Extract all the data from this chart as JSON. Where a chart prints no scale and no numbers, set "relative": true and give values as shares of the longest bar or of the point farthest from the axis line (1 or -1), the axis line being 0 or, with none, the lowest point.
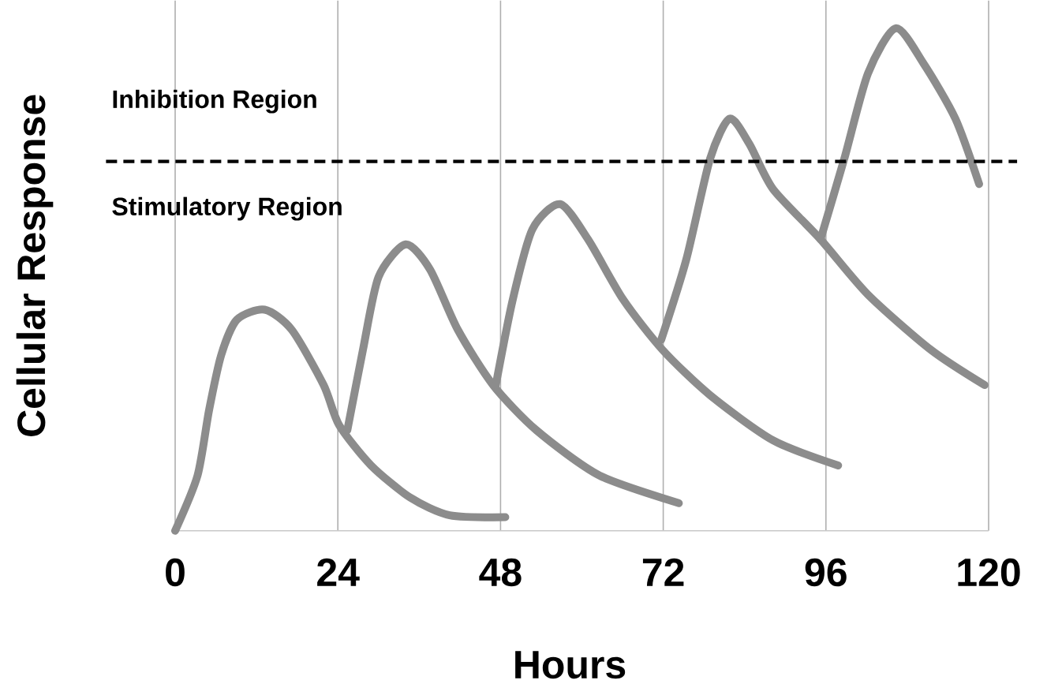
{
  "chart_data": {
    "type": "line",
    "relative": true,
    "xlabel": "Hours",
    "ylabel": "Cellular Response",
    "xlim": [
      0,
      120
    ],
    "xticks": [
      0,
      24,
      48,
      72,
      96,
      120
    ],
    "grid": "x",
    "tick_labels": "x",
    "marker": "none",
    "line_style": "solid",
    "annotations": [
      "Inhibition Region",
      "Stimulatory Region"
    ],
    "ref_lines": [
      {
        "axis": "y",
        "value": 0.735,
        "color": "#000000",
        "line_style": "dashed"
      }
    ],
    "series": [
      {
        "color": "#8c8c8c",
        "x": [
          0,
          3.3,
          5,
          6.8,
          9.1,
          13.2,
          17.2,
          21.9,
          24.2,
          28.9,
          34.7,
          40.5,
          48.7
        ],
        "values": [
          0,
          0.11,
          0.24,
          0.35,
          0.42,
          0.44,
          0.4,
          0.29,
          0.21,
          0.13,
          0.066,
          0.031,
          0.027
        ]
      },
      {
        "color": "#8c8c8c",
        "x": [
          25.4,
          27.7,
          30,
          34,
          37.6,
          41.7,
          46.9,
          53.3,
          62.6,
          74.3
        ],
        "values": [
          0.2,
          0.36,
          0.505,
          0.57,
          0.52,
          0.4,
          0.29,
          0.2,
          0.11,
          0.055
        ]
      },
      {
        "color": "#8c8c8c",
        "x": [
          47.3,
          49.8,
          52.7,
          56.8,
          60.9,
          66.1,
          71.9,
          78.9,
          88.2,
          97.8
        ],
        "values": [
          0.29,
          0.46,
          0.6,
          0.65,
          0.58,
          0.46,
          0.36,
          0.27,
          0.18,
          0.13
        ]
      },
      {
        "color": "#8c8c8c",
        "x": [
          71.7,
          75.4,
          78.9,
          81.8,
          84.7,
          88.2,
          95.2,
          102.2,
          111.5,
          119.4
        ],
        "values": [
          0.38,
          0.54,
          0.74,
          0.82,
          0.77,
          0.68,
          0.58,
          0.47,
          0.36,
          0.29
        ]
      },
      {
        "color": "#8c8c8c",
        "x": [
          95.2,
          98.7,
          102.2,
          106.3,
          110.4,
          115.1,
          118.6
        ],
        "values": [
          0.58,
          0.74,
          0.91,
          1.0,
          0.93,
          0.82,
          0.69
        ]
      }
    ]
  }
}
